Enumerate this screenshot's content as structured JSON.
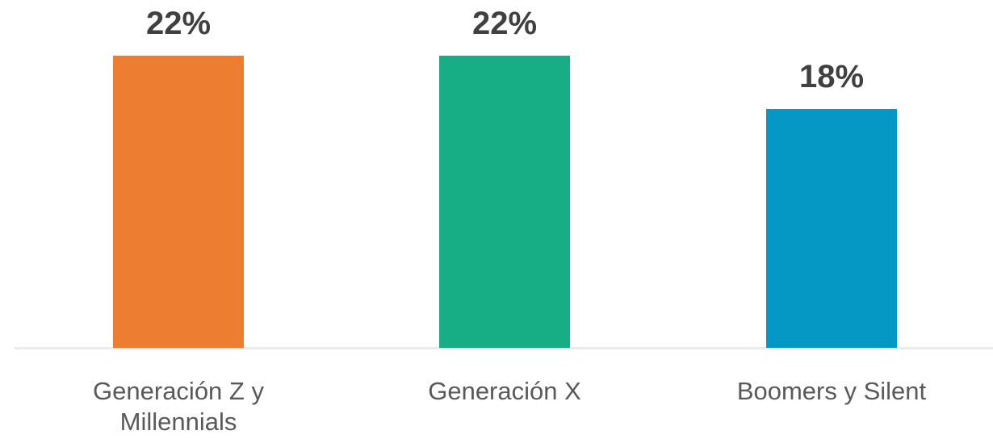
{
  "chart_data": {
    "type": "bar",
    "categories": [
      "Generación Z y Millennials",
      "Generación X",
      "Boomers y Silent"
    ],
    "values": [
      22,
      22,
      18
    ],
    "value_labels": [
      "22%",
      "22%",
      "18%"
    ],
    "colors": [
      "#ed7d31",
      "#17ae85",
      "#0598c5"
    ]
  }
}
